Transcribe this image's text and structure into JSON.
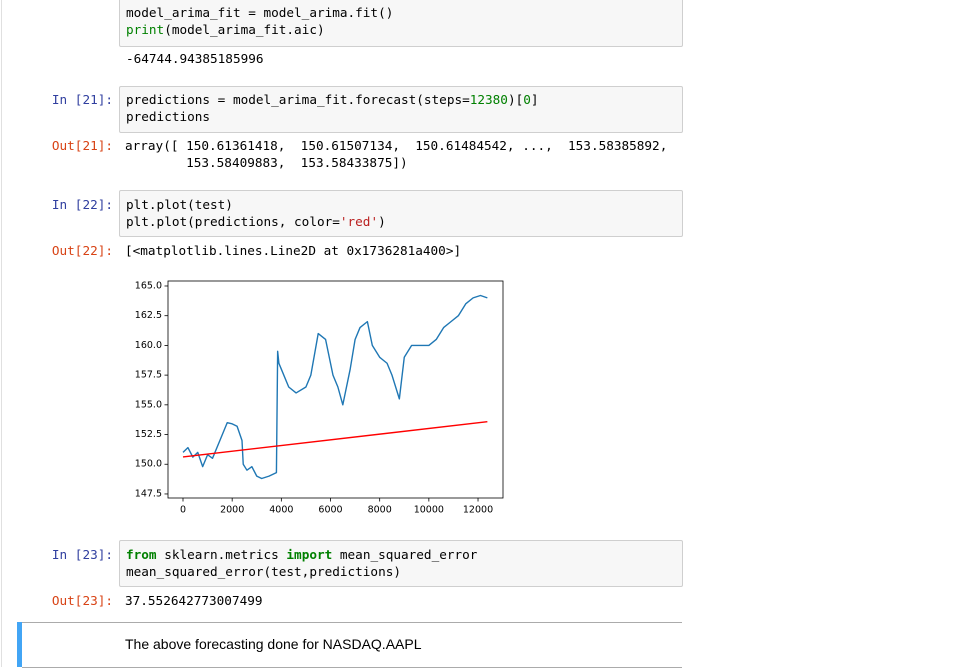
{
  "cells": [
    {
      "code": [
        [
          "model_arima_fit = model_arima.fit()"
        ],
        [
          "print",
          "(model_arima_fit.aic)"
        ]
      ],
      "output": "-64744.94385185996"
    },
    {
      "prompt_in": "In [21]:",
      "code": [
        [
          "predictions = model_arima_fit.forecast(steps=",
          "12380",
          ")[",
          "0",
          "]"
        ],
        [
          "predictions"
        ]
      ],
      "prompt_out": "Out[21]:",
      "output": [
        "array([ 150.61361418,  150.61507134,  150.61484542, ...,  153.58385892,",
        "        153.58409883,  153.58433875])"
      ]
    },
    {
      "prompt_in": "In [22]:",
      "code": [
        [
          "plt.plot(test)"
        ],
        [
          "plt.plot(predictions, color=",
          "'red'",
          ")"
        ]
      ],
      "prompt_out": "Out[22]:",
      "output": "[<matplotlib.lines.Line2D at 0x1736281a400>]"
    },
    {
      "prompt_in": "In [23]:",
      "code": [
        [
          "from",
          " sklearn.metrics ",
          "import",
          " mean_squared_error"
        ],
        [
          "mean_squared_error(test,predictions)"
        ]
      ],
      "prompt_out": "Out[23]:",
      "output": "37.552642773007499"
    }
  ],
  "markdown": "The above forecasting done for NASDAQ.AAPL",
  "chart_data": {
    "type": "line",
    "xlim": [
      -610,
      13016
    ],
    "xticks": [
      0,
      2000,
      4000,
      6000,
      8000,
      10000,
      12000
    ],
    "ylim": [
      147.16,
      165.42
    ],
    "yticks": [
      {
        "value": 147.5,
        "label": "147.5"
      },
      {
        "value": 150,
        "label": "150.0"
      },
      {
        "value": 152.5,
        "label": "152.5"
      },
      {
        "value": 155,
        "label": "155.0"
      },
      {
        "value": 157.5,
        "label": "157.5"
      },
      {
        "value": 160,
        "label": "160.0"
      },
      {
        "value": 162.5,
        "label": "162.5"
      },
      {
        "value": 165,
        "label": "165.0"
      }
    ],
    "series": [
      {
        "color": "#1f77b4",
        "x": [
          0,
          200,
          400,
          600,
          800,
          1000,
          1200,
          1500,
          1800,
          2000,
          2200,
          2400,
          2450,
          2600,
          2800,
          3000,
          3200,
          3500,
          3800,
          3850,
          3900,
          4000,
          4300,
          4600,
          5000,
          5200,
          5500,
          5800,
          6100,
          6300,
          6500,
          6800,
          7000,
          7200,
          7500,
          7700,
          8000,
          8300,
          8500,
          8800,
          9000,
          9300,
          9600,
          10000,
          10300,
          10600,
          10900,
          11200,
          11500,
          11800,
          12100,
          12380
        ],
        "values": [
          151,
          151.4,
          150.6,
          151,
          149.8,
          150.8,
          150.5,
          152,
          153.5,
          153.4,
          153.2,
          152,
          150,
          149.5,
          149.8,
          149,
          148.8,
          149,
          149.3,
          159.5,
          158.5,
          158,
          156.5,
          156,
          156.5,
          157.5,
          161,
          160.5,
          157.5,
          156.5,
          155,
          158,
          160.5,
          161.5,
          162,
          160,
          159,
          158.5,
          157.5,
          155.5,
          159,
          160,
          160,
          160,
          160.5,
          161.5,
          162,
          162.5,
          163.5,
          164,
          164.2,
          164
        ]
      },
      {
        "color": "#ff0000",
        "x": [
          0,
          12380
        ],
        "values": [
          150.61361418,
          153.58433875
        ]
      }
    ]
  }
}
